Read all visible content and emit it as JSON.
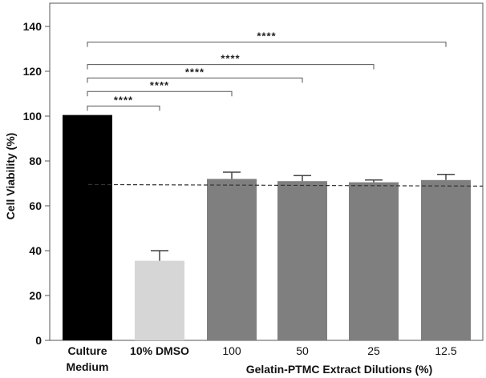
{
  "chart_data": {
    "type": "bar",
    "ylabel": "Cell Viability (%)",
    "xlabel": "Gelatin-PTMC Extract Dilutions (%)",
    "ylim": [
      0,
      150
    ],
    "yticks": [
      "0",
      "20",
      "40",
      "60",
      "80",
      "100",
      "120",
      "140"
    ],
    "categories": [
      {
        "line1": "Culture",
        "line2": "Medium",
        "value": 100.5,
        "error": 0,
        "color": "#000000"
      },
      {
        "line1": "10% DMSO",
        "line2": "",
        "value": 35.5,
        "error": 4.5,
        "color": "#d6d6d6"
      },
      {
        "line1": "100",
        "line2": "",
        "value": 72,
        "error": 3,
        "color": "#7f7f7f"
      },
      {
        "line1": "50",
        "line2": "",
        "value": 71,
        "error": 2.5,
        "color": "#7f7f7f"
      },
      {
        "line1": "25",
        "line2": "",
        "value": 70.5,
        "error": 1,
        "color": "#7f7f7f"
      },
      {
        "line1": "12.5",
        "line2": "",
        "value": 71.5,
        "error": 2.5,
        "color": "#7f7f7f"
      }
    ],
    "reference_line": {
      "value": 69.5,
      "style": "dashed"
    },
    "significance": [
      {
        "from": 0,
        "to": 1,
        "y": 104.5,
        "label": "****"
      },
      {
        "from": 0,
        "to": 2,
        "y": 111,
        "label": "****"
      },
      {
        "from": 0,
        "to": 3,
        "y": 117,
        "label": "****"
      },
      {
        "from": 0,
        "to": 4,
        "y": 123,
        "label": "****"
      },
      {
        "from": 0,
        "to": 5,
        "y": 133,
        "label": "****"
      }
    ]
  }
}
